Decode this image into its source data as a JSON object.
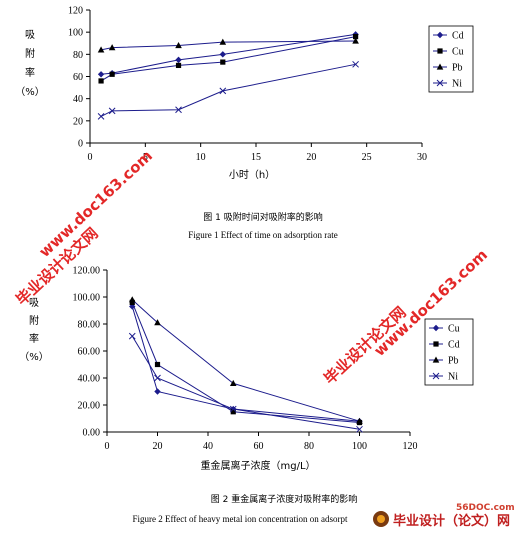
{
  "chart_data": [
    {
      "type": "line",
      "ylabel": [
        "吸",
        "附",
        "率",
        "（%）"
      ],
      "xlabel": "小时（h）",
      "xlim": [
        0,
        30
      ],
      "ylim": [
        0,
        120
      ],
      "x_ticks": [
        "0",
        "5",
        "10",
        "15",
        "20",
        "25",
        "30"
      ],
      "y_ticks": [
        "0",
        "20",
        "40",
        "60",
        "80",
        "100",
        "120"
      ],
      "grid": false,
      "legend_position": "right",
      "series": [
        {
          "name": "Cd",
          "marker": "diamond",
          "points": [
            [
              1,
              62
            ],
            [
              2,
              63
            ],
            [
              8,
              75
            ],
            [
              12,
              80
            ],
            [
              24,
              98
            ]
          ]
        },
        {
          "name": "Cu",
          "marker": "square",
          "points": [
            [
              1,
              56
            ],
            [
              2,
              62
            ],
            [
              8,
              70
            ],
            [
              12,
              73
            ],
            [
              24,
              96
            ]
          ]
        },
        {
          "name": "Pb",
          "marker": "triangle",
          "points": [
            [
              1,
              84
            ],
            [
              2,
              86
            ],
            [
              8,
              88
            ],
            [
              12,
              91
            ],
            [
              24,
              92
            ]
          ]
        },
        {
          "name": "Ni",
          "marker": "x",
          "points": [
            [
              1,
              24
            ],
            [
              2,
              29
            ],
            [
              8,
              30
            ],
            [
              12,
              47
            ],
            [
              24,
              71
            ]
          ]
        }
      ],
      "caption_cn": "图 1 吸附时间对吸附率的影响",
      "caption_en": "Figure 1 Effect of time on adsorption rate"
    },
    {
      "type": "line",
      "ylabel": [
        "吸",
        "附",
        "率",
        "（%）"
      ],
      "xlabel": "重金属离子浓度（mg/L）",
      "xlim": [
        0,
        120
      ],
      "ylim": [
        0,
        120
      ],
      "x_ticks": [
        "0",
        "20",
        "40",
        "60",
        "80",
        "100",
        "120"
      ],
      "y_ticks": [
        "0.00",
        "20.00",
        "40.00",
        "60.00",
        "80.00",
        "100.00",
        "120.00"
      ],
      "grid": false,
      "legend_position": "right",
      "series": [
        {
          "name": "Cu",
          "marker": "diamond",
          "points": [
            [
              10,
              93
            ],
            [
              20,
              30
            ],
            [
              50,
              17
            ],
            [
              100,
              8
            ]
          ]
        },
        {
          "name": "Cd",
          "marker": "square",
          "points": [
            [
              10,
              96
            ],
            [
              20,
              50
            ],
            [
              50,
              15
            ],
            [
              100,
              7
            ]
          ]
        },
        {
          "name": "Pb",
          "marker": "triangle",
          "points": [
            [
              10,
              98
            ],
            [
              20,
              81
            ],
            [
              50,
              36
            ],
            [
              100,
              8
            ]
          ]
        },
        {
          "name": "Ni",
          "marker": "x",
          "points": [
            [
              10,
              71
            ],
            [
              20,
              40
            ],
            [
              50,
              17
            ],
            [
              100,
              2
            ]
          ]
        }
      ],
      "caption_cn": "图 2 重金属离子浓度对吸附率的影响",
      "caption_en": "Figure 2 Effect of heavy metal ion concentration on adsorpt"
    }
  ],
  "watermarks": [
    {
      "text": "毕业设计论文网"
    },
    {
      "text": "www.doc163.com"
    },
    {
      "text": "毕业设计论文网"
    },
    {
      "text": "www.doc163.com"
    }
  ],
  "footer": {
    "url": "56DOC.com",
    "brand": "毕业设计（论文）网"
  },
  "colors": {
    "line": "#1c1c8c",
    "axis": "#000000",
    "watermark": "#e01010"
  }
}
